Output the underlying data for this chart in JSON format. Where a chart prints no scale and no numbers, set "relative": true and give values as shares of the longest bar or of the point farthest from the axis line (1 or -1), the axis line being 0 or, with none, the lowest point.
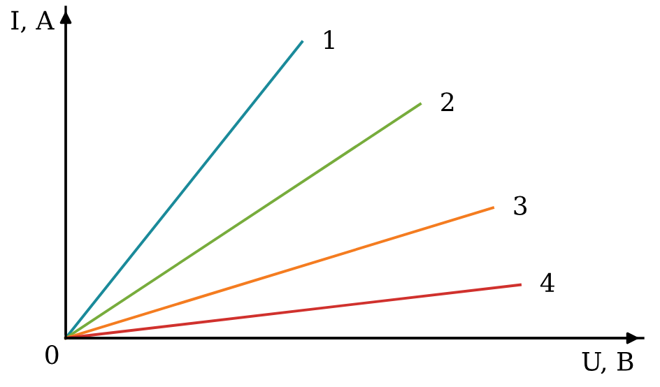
{
  "chart_data": {
    "type": "line",
    "relative": true,
    "xlabel": "U, B",
    "ylabel": "I, A",
    "annotations": [
      "0"
    ],
    "categories": [
      null,
      null,
      null,
      null,
      null,
      null,
      null,
      null,
      null,
      null,
      null,
      null,
      null,
      null,
      null,
      null,
      null,
      null,
      null,
      null,
      null,
      null,
      null,
      null,
      null,
      null,
      null,
      null,
      null,
      null,
      null,
      null,
      null,
      null,
      null,
      null,
      null,
      null,
      null,
      null,
      null,
      null,
      null,
      null,
      null,
      null,
      null,
      null,
      null,
      null,
      null
    ],
    "series": [
      {
        "name": "1",
        "color": "#1a8a9a",
        "values": [
          0,
          null,
          null,
          null,
          null,
          null,
          null,
          null,
          null,
          null,
          null,
          null,
          null,
          null,
          null,
          null,
          null,
          null,
          null,
          null,
          null,
          null,
          null,
          null,
          null,
          null,
          1,
          null,
          null,
          null,
          null,
          null,
          null,
          null,
          null,
          null,
          null,
          null,
          null,
          null,
          null,
          null,
          null,
          null,
          null,
          null,
          null,
          null,
          null,
          null,
          null
        ]
      },
      {
        "name": "2",
        "color": "#77ac3c",
        "values": [
          0,
          null,
          null,
          null,
          null,
          null,
          null,
          null,
          null,
          null,
          null,
          null,
          null,
          null,
          null,
          null,
          null,
          null,
          null,
          null,
          null,
          null,
          null,
          null,
          null,
          null,
          null,
          null,
          null,
          null,
          null,
          null,
          null,
          null,
          null,
          null,
          null,
          null,
          null,
          0.79,
          null,
          null,
          null,
          null,
          null,
          null,
          null,
          null,
          null,
          null,
          null
        ]
      },
      {
        "name": "3",
        "color": "#f47c20",
        "values": [
          0,
          null,
          null,
          null,
          null,
          null,
          null,
          null,
          null,
          null,
          null,
          null,
          null,
          null,
          null,
          null,
          null,
          null,
          null,
          null,
          null,
          null,
          null,
          null,
          null,
          null,
          null,
          null,
          null,
          null,
          null,
          null,
          null,
          null,
          null,
          null,
          null,
          null,
          null,
          null,
          null,
          null,
          null,
          null,
          null,
          null,
          null,
          0.44,
          null,
          null,
          null
        ]
      },
      {
        "name": "4",
        "color": "#d0312d",
        "values": [
          0,
          null,
          null,
          null,
          null,
          null,
          null,
          null,
          null,
          null,
          null,
          null,
          null,
          null,
          null,
          null,
          null,
          null,
          null,
          null,
          null,
          null,
          null,
          null,
          null,
          null,
          null,
          null,
          null,
          null,
          null,
          null,
          null,
          null,
          null,
          null,
          null,
          null,
          null,
          null,
          null,
          null,
          null,
          null,
          null,
          null,
          null,
          null,
          null,
          null,
          0.18
        ]
      }
    ]
  }
}
